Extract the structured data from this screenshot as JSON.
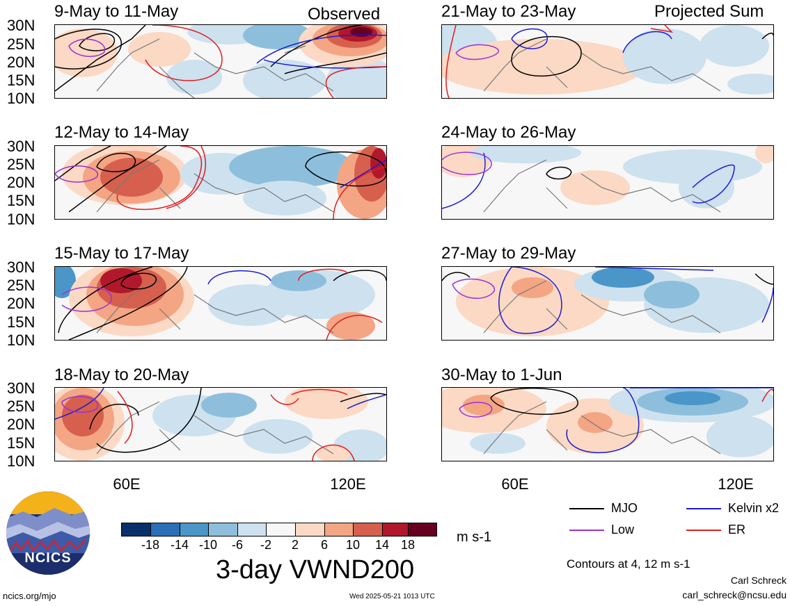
{
  "headers": {
    "observed": "Observed",
    "projected": "Projected Sum"
  },
  "lat_labels": [
    "30N",
    "25N",
    "20N",
    "15N",
    "10N"
  ],
  "lon_labels": [
    "60E",
    "120E"
  ],
  "panels": [
    {
      "title": "9-May to 11-May",
      "column": "observed"
    },
    {
      "title": "12-May to 14-May",
      "column": "observed"
    },
    {
      "title": "15-May to 17-May",
      "column": "observed"
    },
    {
      "title": "18-May to 20-May",
      "column": "observed"
    },
    {
      "title": "21-May to 23-May",
      "column": "projected"
    },
    {
      "title": "24-May to 26-May",
      "column": "projected"
    },
    {
      "title": "27-May to 29-May",
      "column": "projected"
    },
    {
      "title": "30-May to 1-Jun",
      "column": "projected"
    }
  ],
  "colorbar": {
    "colors": [
      "#08306b",
      "#2a6fb8",
      "#4a96c8",
      "#8dbfdc",
      "#cde1ef",
      "#f7f7f7",
      "#fbd9c4",
      "#f3a584",
      "#d6604d",
      "#b2182b",
      "#67001f"
    ],
    "labels": [
      "-18",
      "-14",
      "-10",
      "-6",
      "-2",
      "2",
      "6",
      "10",
      "14",
      "18"
    ],
    "units": "m s-1"
  },
  "legend": [
    {
      "label": "MJO",
      "color": "#000000"
    },
    {
      "label": "Kelvin x2",
      "color": "#1a1ad6"
    },
    {
      "label": "Low",
      "color": "#9b30d9"
    },
    {
      "label": "ER",
      "color": "#e31a1c"
    }
  ],
  "main_title": "3-day VWND200",
  "contours_note": "Contours at 4, 12 m s-1",
  "author": "Carl Schreck",
  "email": "carl_schreck@ncsu.edu",
  "site": "ncics.org/mjo",
  "timestamp": "Wed 2025-05-21 1013 UTC",
  "logo_text": "NCICS"
}
